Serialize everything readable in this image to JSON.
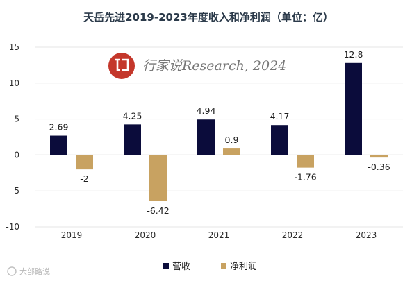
{
  "chart_data": {
    "type": "bar",
    "title": "天岳先进2019-2023年度收入和净利润（单位：亿）",
    "categories": [
      "2019",
      "2020",
      "2021",
      "2022",
      "2023"
    ],
    "series": [
      {
        "name": "营收",
        "color": "#0b0c3b",
        "values": [
          2.69,
          4.25,
          4.94,
          4.17,
          12.8
        ]
      },
      {
        "name": "净利润",
        "color": "#c8a261",
        "values": [
          -2,
          -6.42,
          0.9,
          -1.76,
          -0.36
        ]
      }
    ],
    "ylim": [
      -10,
      15
    ],
    "yticks": [
      -10,
      -5,
      0,
      5,
      10,
      15
    ],
    "grid": true,
    "legend": "bottom",
    "data_labels": {
      "营收": [
        "2.69",
        "4.25",
        "4.94",
        "4.17",
        "12.8"
      ],
      "净利润": [
        "-2",
        "-6.42",
        "0.9",
        "-1.76",
        "-0.36"
      ]
    }
  },
  "watermark": {
    "text": "行家说Research, 2024",
    "logo_color": "#c4372b",
    "corner_text": "大部路说"
  }
}
